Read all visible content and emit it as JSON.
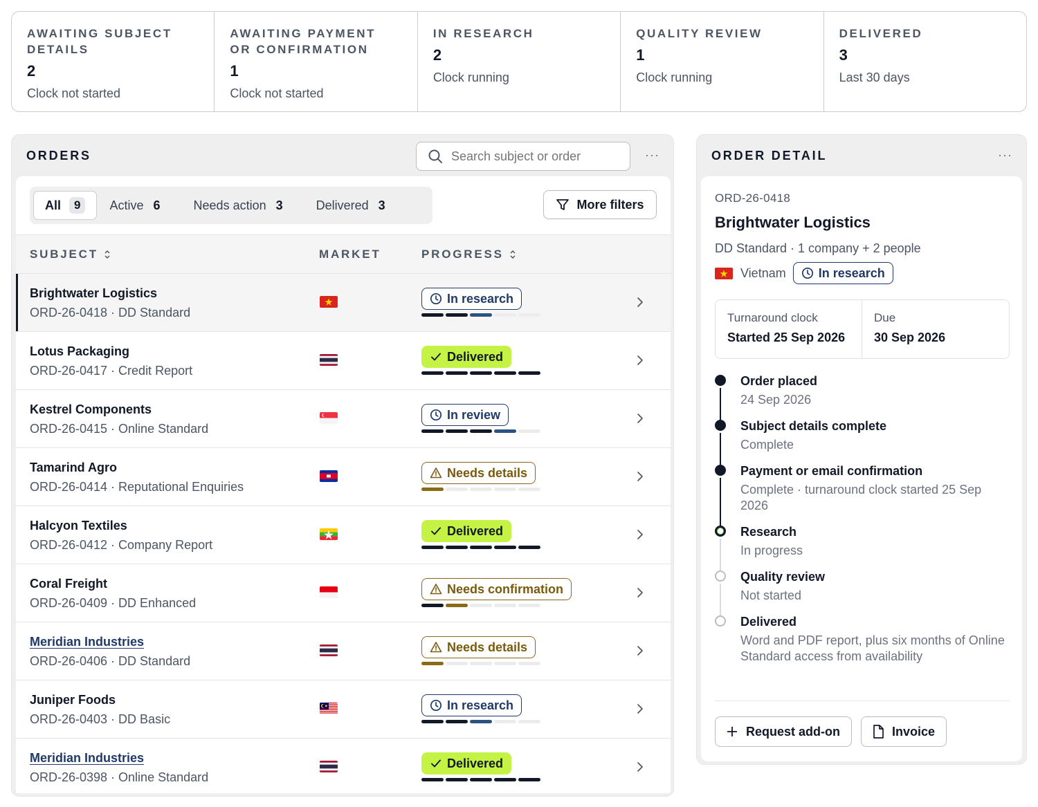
{
  "summary": [
    {
      "title": "Awaiting subject details",
      "count": "2",
      "note": "Clock not started"
    },
    {
      "title": "Awaiting payment or confirmation",
      "count": "1",
      "note": "Clock not started"
    },
    {
      "title": "In research",
      "count": "2",
      "note": "Clock running"
    },
    {
      "title": "Quality review",
      "count": "1",
      "note": "Clock running"
    },
    {
      "title": "Delivered",
      "count": "3",
      "note": "Last 30 days"
    }
  ],
  "orders": {
    "title": "ORDERS",
    "search_placeholder": "Search subject or order",
    "more": "···",
    "filters": [
      {
        "label": "All",
        "count": "9"
      },
      {
        "label": "Active",
        "count": "6"
      },
      {
        "label": "Needs action",
        "count": "3"
      },
      {
        "label": "Delivered",
        "count": "3"
      }
    ],
    "more_filters": "More filters",
    "columns": {
      "subject": "SUBJECT",
      "market": "MARKET",
      "progress": "PROGRESS"
    },
    "rows": [
      {
        "name": "Brightwater Logistics",
        "sub": "ORD-26-0418 · DD Standard",
        "flag": "vietnam",
        "status": "In research",
        "kind": "research",
        "progress": 3,
        "warnStep": 0
      },
      {
        "name": "Lotus Packaging",
        "sub": "ORD-26-0417 · Credit Report",
        "flag": "thailand",
        "status": "Delivered",
        "kind": "delivered",
        "progress": 5,
        "warnStep": 0
      },
      {
        "name": "Kestrel Components",
        "sub": "ORD-26-0415 · Online Standard",
        "flag": "singapore",
        "status": "In review",
        "kind": "research",
        "progress": 4,
        "warnStep": 0
      },
      {
        "name": "Tamarind Agro",
        "sub": "ORD-26-0414 · Reputational Enquiries",
        "flag": "cambodia",
        "status": "Needs details",
        "kind": "warn",
        "progress": 0,
        "warnStep": 1
      },
      {
        "name": "Halcyon Textiles",
        "sub": "ORD-26-0412 · Company Report",
        "flag": "myanmar",
        "status": "Delivered",
        "kind": "delivered",
        "progress": 5,
        "warnStep": 0
      },
      {
        "name": "Coral Freight",
        "sub": "ORD-26-0409 · DD Enhanced",
        "flag": "indonesia",
        "status": "Needs confirmation",
        "kind": "warn",
        "progress": 1,
        "warnStep": 2
      },
      {
        "name": "Meridian Industries",
        "sub": "ORD-26-0406 · DD Standard",
        "flag": "thailand",
        "status": "Needs details",
        "kind": "warn",
        "progress": 0,
        "warnStep": 1,
        "link": true
      },
      {
        "name": "Juniper Foods",
        "sub": "ORD-26-0403 · DD Basic",
        "flag": "malaysia",
        "status": "In research",
        "kind": "research",
        "progress": 3,
        "warnStep": 0
      },
      {
        "name": "Meridian Industries",
        "sub": "ORD-26-0398 · Online Standard",
        "flag": "thailand",
        "status": "Delivered",
        "kind": "delivered",
        "progress": 5,
        "warnStep": 0,
        "link": true
      }
    ]
  },
  "detail": {
    "title": "ORDER DETAIL",
    "more": "···",
    "id": "ORD-26-0418",
    "name": "Brightwater Logistics",
    "meta": "DD Standard · 1 company + 2 people",
    "country": "Vietnam",
    "status": "In research",
    "clock_label": "Turnaround clock",
    "clock_value": "Started 25 Sep 2026",
    "due_label": "Due",
    "due_value": "30 Sep 2026",
    "timeline": [
      {
        "title": "Order placed",
        "desc": "24 Sep 2026",
        "state": "done"
      },
      {
        "title": "Subject details complete",
        "desc": "Complete",
        "state": "done"
      },
      {
        "title": "Payment or email confirmation",
        "desc": "Complete · turnaround clock started 25 Sep 2026",
        "state": "done"
      },
      {
        "title": "Research",
        "desc": "In progress",
        "state": "current"
      },
      {
        "title": "Quality review",
        "desc": "Not started",
        "state": "todo"
      },
      {
        "title": "Delivered",
        "desc": "Word and PDF report, plus six months of Online Standard access from availability",
        "state": "todo"
      }
    ],
    "add_on_label": "Request add-on",
    "invoice_label": "Invoice"
  }
}
